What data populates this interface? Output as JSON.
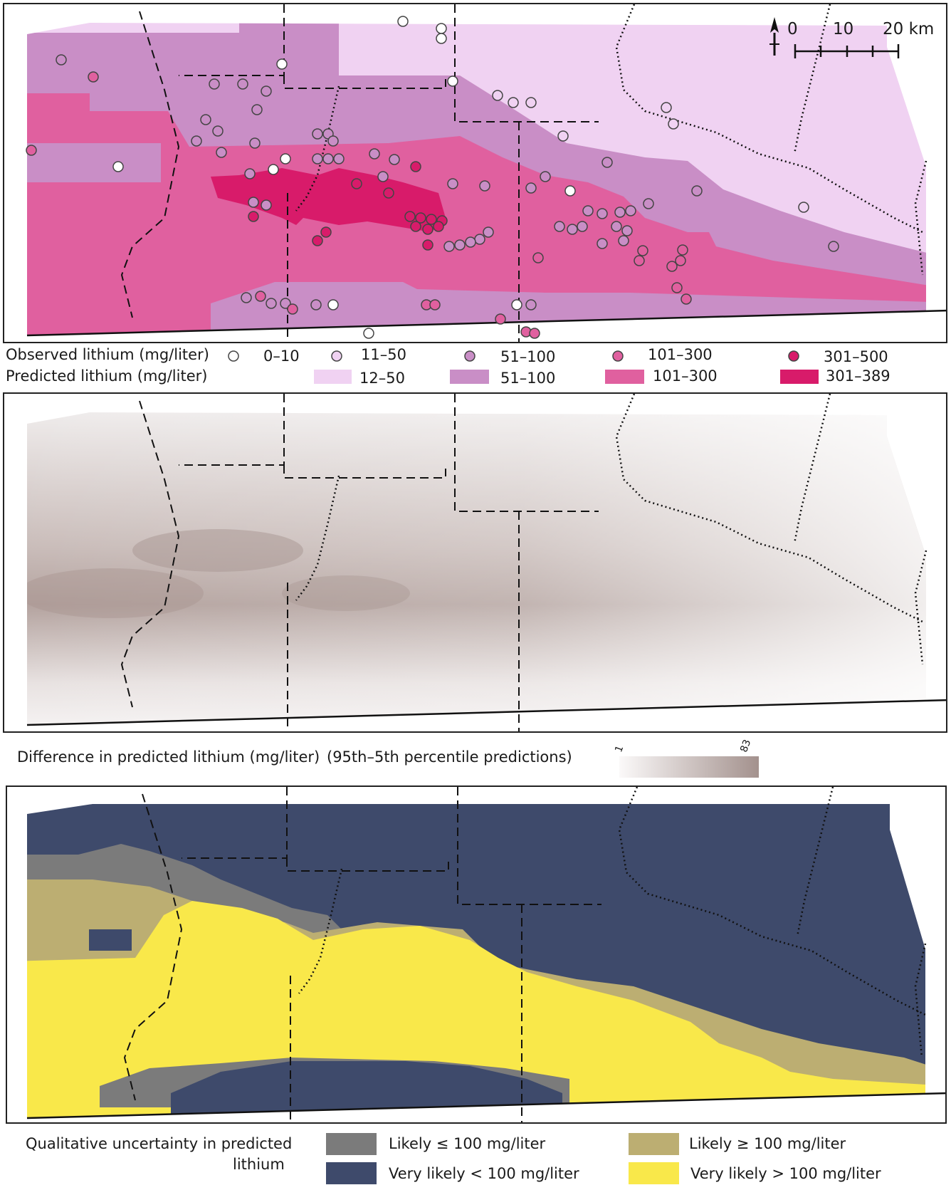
{
  "panel_a": {
    "observed_title": "Observed lithium (mg/liter)",
    "predicted_title": "Predicted lithium (mg/liter)",
    "observed_classes": [
      {
        "label": "0–10",
        "color": "#ffffff"
      },
      {
        "label": "11–50",
        "color": "#f0d2f2"
      },
      {
        "label": "51–100",
        "color": "#c98ec6"
      },
      {
        "label": "101–300",
        "color": "#e0609f"
      },
      {
        "label": "301–500",
        "color": "#d81b6a"
      }
    ],
    "predicted_classes": [
      {
        "label": "12–50",
        "color": "#f0d2f2"
      },
      {
        "label": "51–100",
        "color": "#c98ec6"
      },
      {
        "label": "101–300",
        "color": "#e0609f"
      },
      {
        "label": "301–389",
        "color": "#d81b6a"
      }
    ],
    "scale_labels": [
      "0",
      "10",
      "20 km"
    ],
    "north_arrow": "north-arrow-icon"
  },
  "panel_b": {
    "title": "Difference in predicted lithium (mg/liter)",
    "subtitle": "(95th–5th percentile predictions)",
    "colorbar_min": "1",
    "colorbar_max": "83",
    "colorbar_colors": [
      "#fbf9f9",
      "#a3918d"
    ]
  },
  "panel_c": {
    "title_line1": "Qualitative uncertainty in predicted",
    "title_line2": "lithium",
    "classes": [
      {
        "label": "Likely ≤ 100 mg/liter",
        "color": "#7b7b7b"
      },
      {
        "label": "Very likely < 100 mg/liter",
        "color": "#3e4a6b"
      },
      {
        "label": "Likely ≥ 100 mg/liter",
        "color": "#bcae72"
      },
      {
        "label": "Very likely > 100 mg/liter",
        "color": "#f9e84a"
      }
    ]
  }
}
